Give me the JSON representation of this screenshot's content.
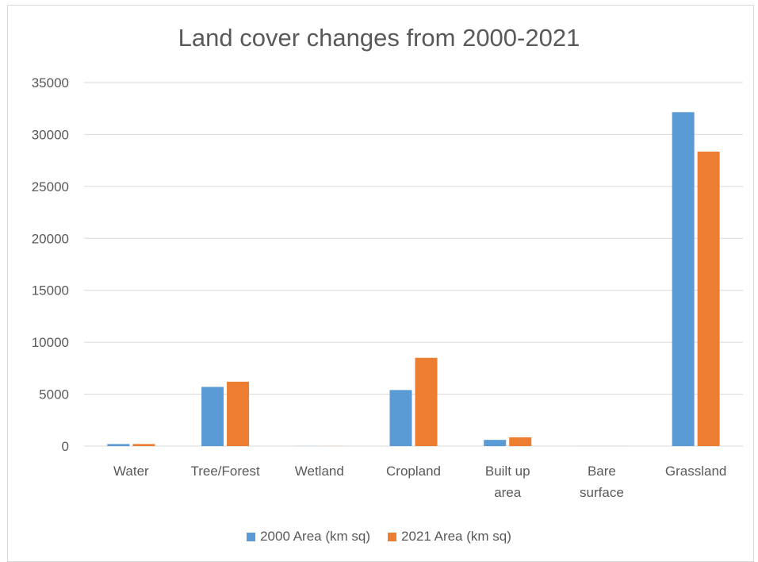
{
  "chart_data": {
    "type": "bar",
    "title": "Land cover changes from 2000-2021",
    "xlabel": "",
    "ylabel": "",
    "categories": [
      [
        "Water"
      ],
      [
        "Tree/Forest"
      ],
      [
        "Wetland"
      ],
      [
        "Cropland"
      ],
      [
        "Built up",
        "area"
      ],
      [
        "Bare",
        "surface"
      ],
      [
        "Grassland"
      ]
    ],
    "series": [
      {
        "name": "2000 Area (km sq)",
        "color": "#5b9bd5",
        "values": [
          200,
          5700,
          10,
          5400,
          600,
          5,
          32150
        ]
      },
      {
        "name": "2021 Area (km sq)",
        "color": "#ed7d31",
        "values": [
          200,
          6200,
          10,
          8500,
          850,
          5,
          28350
        ]
      }
    ],
    "ylim": [
      0,
      35000
    ],
    "yticks": [
      0,
      5000,
      10000,
      15000,
      20000,
      25000,
      30000,
      35000
    ],
    "grid": true,
    "legend_position": "bottom"
  }
}
